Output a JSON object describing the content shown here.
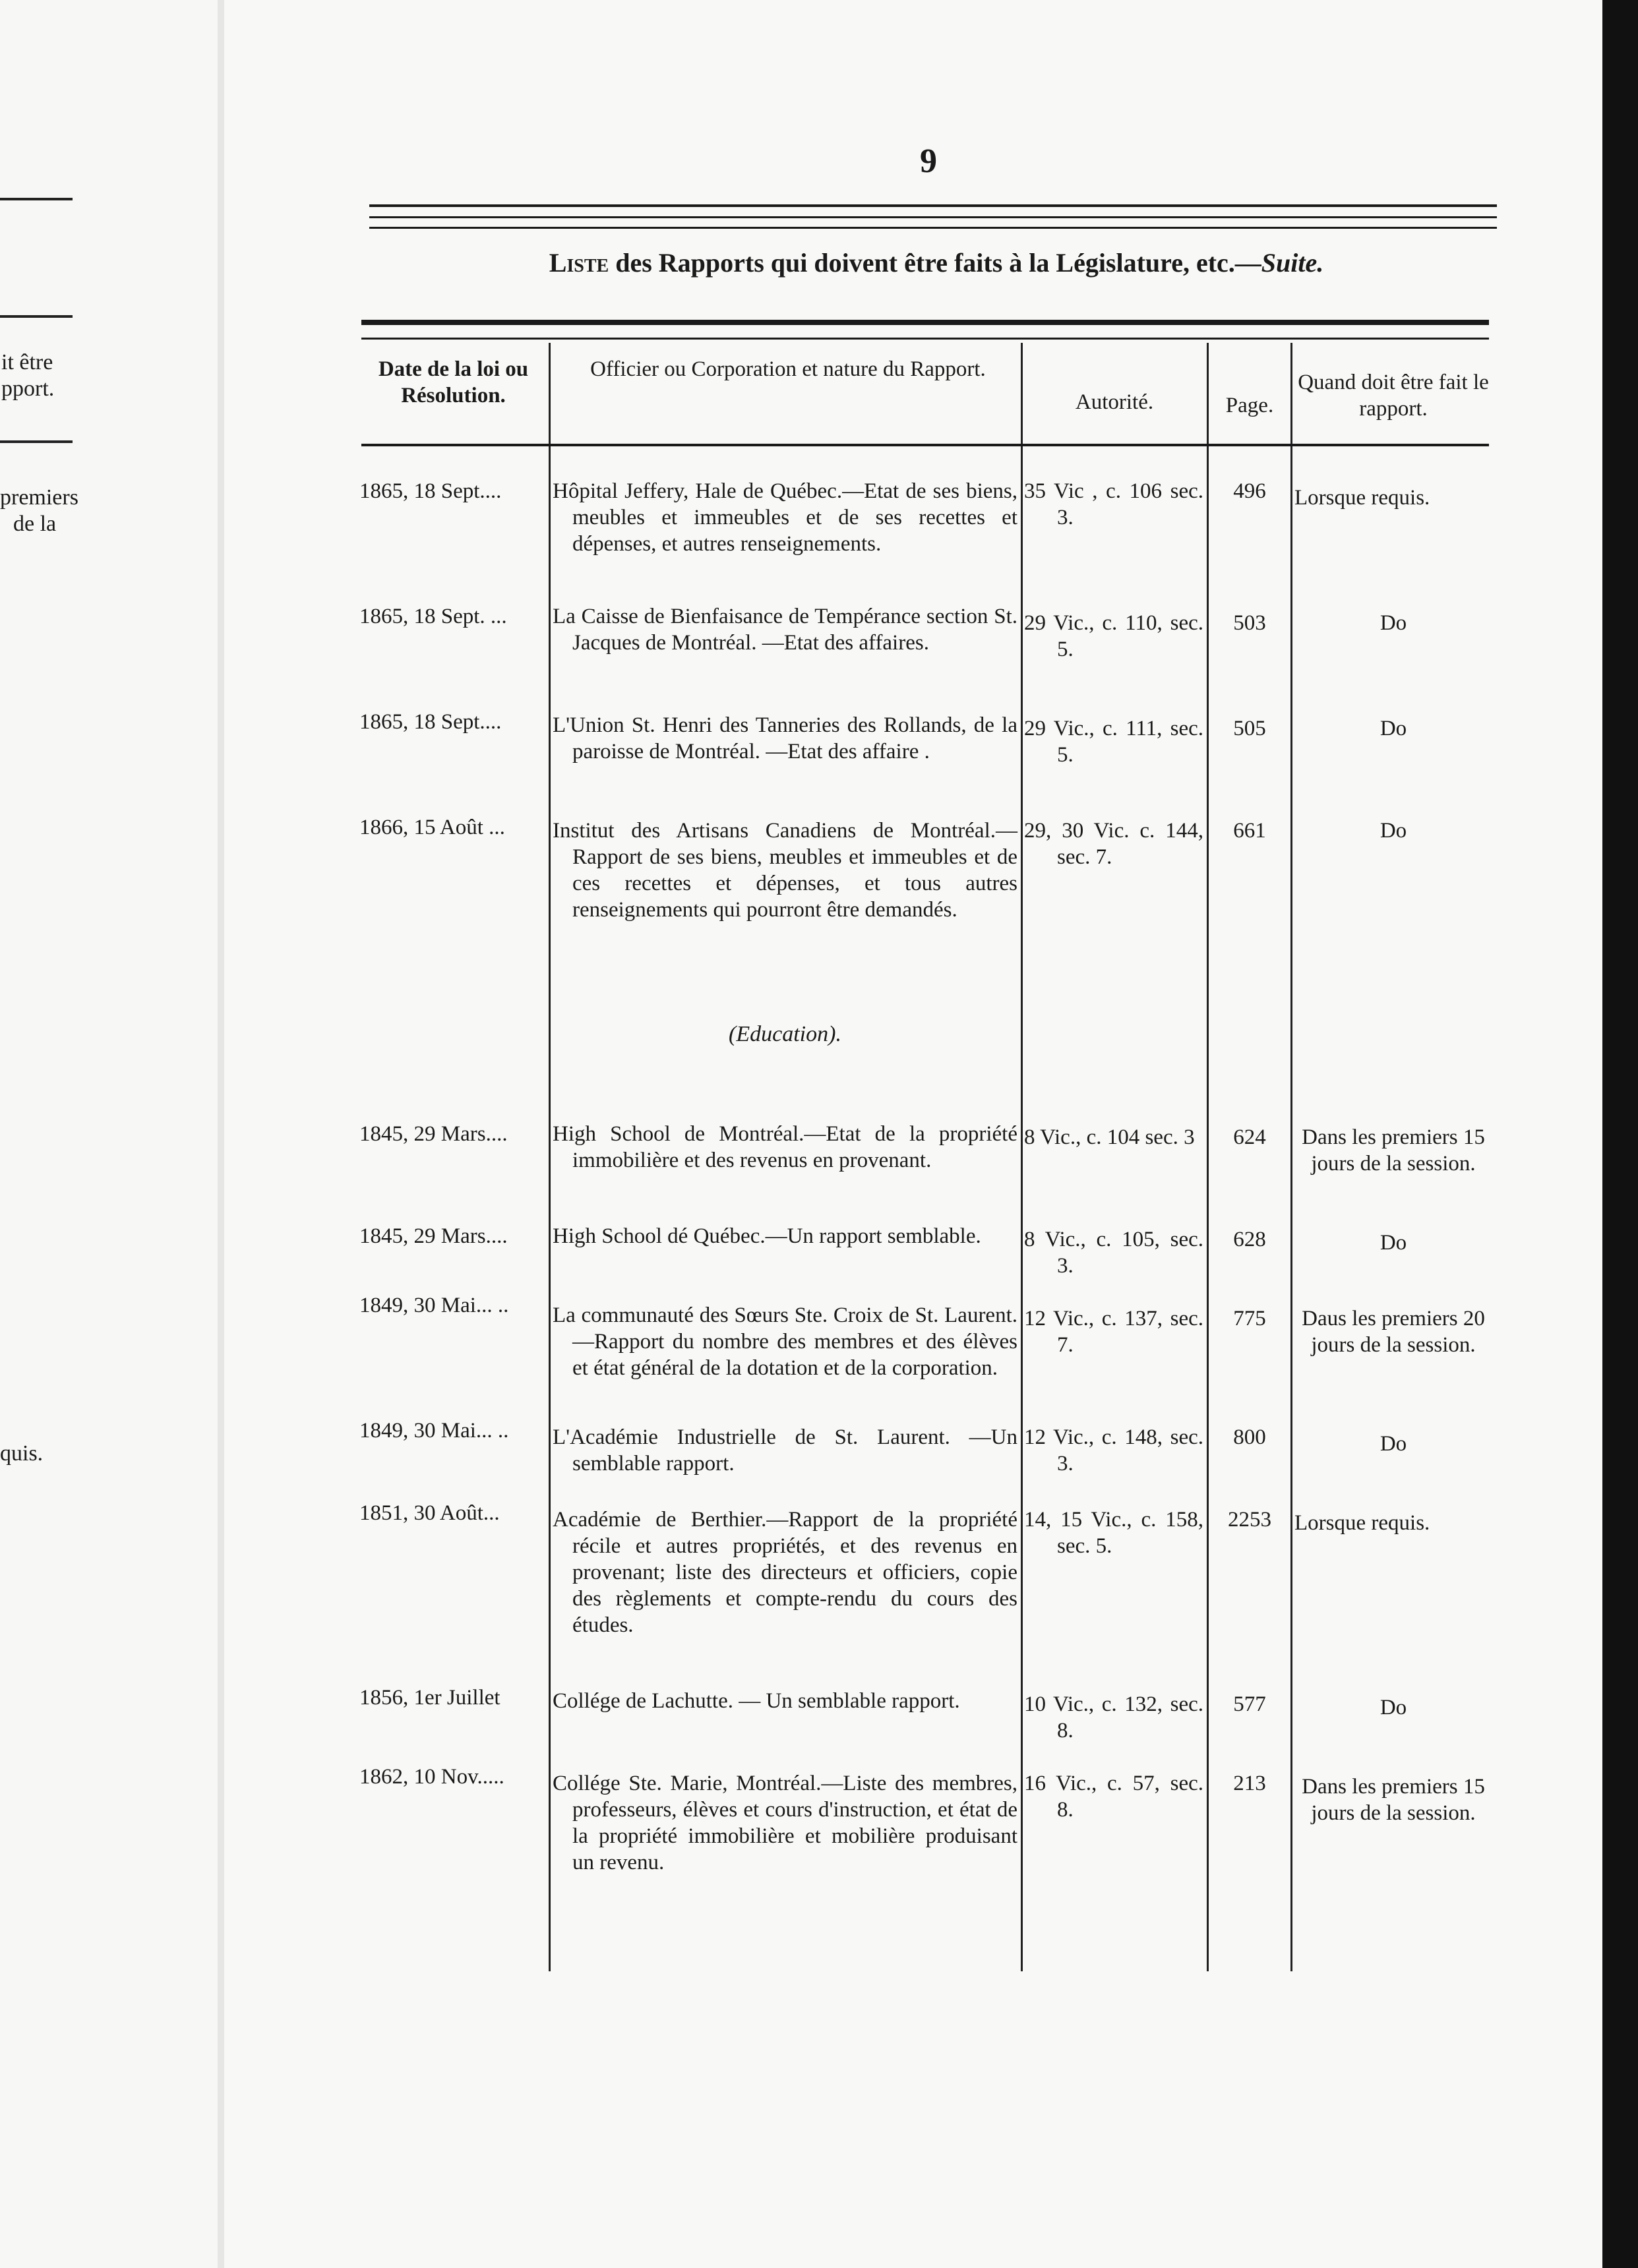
{
  "left_page_fragments": [
    "it être",
    "pport.",
    "premiers",
    "de la",
    "quis."
  ],
  "page_number": "9",
  "title": {
    "prefix": "Liste",
    "main": " des Rapports qui doivent être faits à la Législature, etc.—",
    "suite": "Suite."
  },
  "headers": {
    "date": "Date de la loi ou Résolution.",
    "officer": "Officier ou Corporation et nature du Rapport.",
    "authority": "Autorité.",
    "page": "Page.",
    "when": "Quand doit être fait le rapport."
  },
  "rows": [
    {
      "date": "1865, 18 Sept....",
      "desc": "Hôpital Jeffery, Hale de Québec.—Etat de ses biens, meubles et immeubles et de ses recettes et dépenses, et autres renseignements.",
      "authority": "35 Vic , c. 106 sec. 3.",
      "page": "496",
      "when": "Lorsque requis."
    },
    {
      "date": "1865, 18 Sept. ...",
      "desc": "La Caisse de Bienfaisance de Tempérance section St. Jacques de Montréal. —Etat des affaires.",
      "authority": "29 Vic., c. 110, sec. 5.",
      "page": "503",
      "when": "Do"
    },
    {
      "date": "1865, 18 Sept....",
      "desc": "L'Union St. Henri des Tanneries des Rollands, de la paroisse de Montréal. —Etat des affaire .",
      "authority": "29 Vic., c. 111, sec. 5.",
      "page": "505",
      "when": "Do"
    },
    {
      "date": "1866, 15 Août ...",
      "desc": "Institut des Artisans Canadiens de Montréal.—Rapport de ses biens, meubles et immeubles et de ces recettes et dépenses, et tous autres renseignements qui pourront être demandés.",
      "authority": "29, 30 Vic. c. 144, sec. 7.",
      "page": "661",
      "when": "Do"
    }
  ],
  "section": "(Education).",
  "education_rows": [
    {
      "date": "1845, 29 Mars....",
      "desc": "High School de Montréal.—Etat de la propriété immobilière et des revenus en provenant.",
      "authority": "8 Vic., c. 104 sec. 3",
      "page": "624",
      "when": "Dans les premiers 15 jours de la session."
    },
    {
      "date": "1845, 29 Mars....",
      "desc": "High School dé Québec.—Un rapport semblable.",
      "authority": "8 Vic., c. 105, sec. 3.",
      "page": "628",
      "when": "Do"
    },
    {
      "date": "1849, 30 Mai... ..",
      "desc": "La communauté des Sœurs Ste. Croix de St. Laurent.—Rapport du nombre des membres et des élèves et état général de la dotation et de la corporation.",
      "authority": "12 Vic., c. 137, sec. 7.",
      "page": "775",
      "when": "Daus les premiers 20 jours de la session."
    },
    {
      "date": "1849, 30 Mai... ..",
      "desc": "L'Académie Industrielle de St. Laurent. —Un semblable rapport.",
      "authority": "12 Vic., c. 148, sec. 3.",
      "page": "800",
      "when": "Do"
    },
    {
      "date": "1851, 30 Août...",
      "desc": "Académie de Berthier.—Rapport de la propriété récile et autres propriétés, et des revenus en provenant; liste des directeurs et officiers, copie des règlements et compte-rendu du cours des études.",
      "authority": "14, 15 Vic., c. 158, sec. 5.",
      "page": "2253",
      "when": "Lorsque requis."
    },
    {
      "date": "1856, 1er Juillet",
      "desc": "Collége de Lachutte. — Un semblable rapport.",
      "authority": "10 Vic., c. 132, sec. 8.",
      "page": "577",
      "when": "Do"
    },
    {
      "date": "1862, 10 Nov.....",
      "desc": "Collége Ste. Marie, Montréal.—Liste des membres, professeurs, élèves et cours d'instruction, et état de la propriété immobilière et mobilière produisant un revenu.",
      "authority": "16 Vic., c. 57, sec. 8.",
      "page": "213",
      "when": "Dans les premiers 15 jours de la session."
    }
  ]
}
